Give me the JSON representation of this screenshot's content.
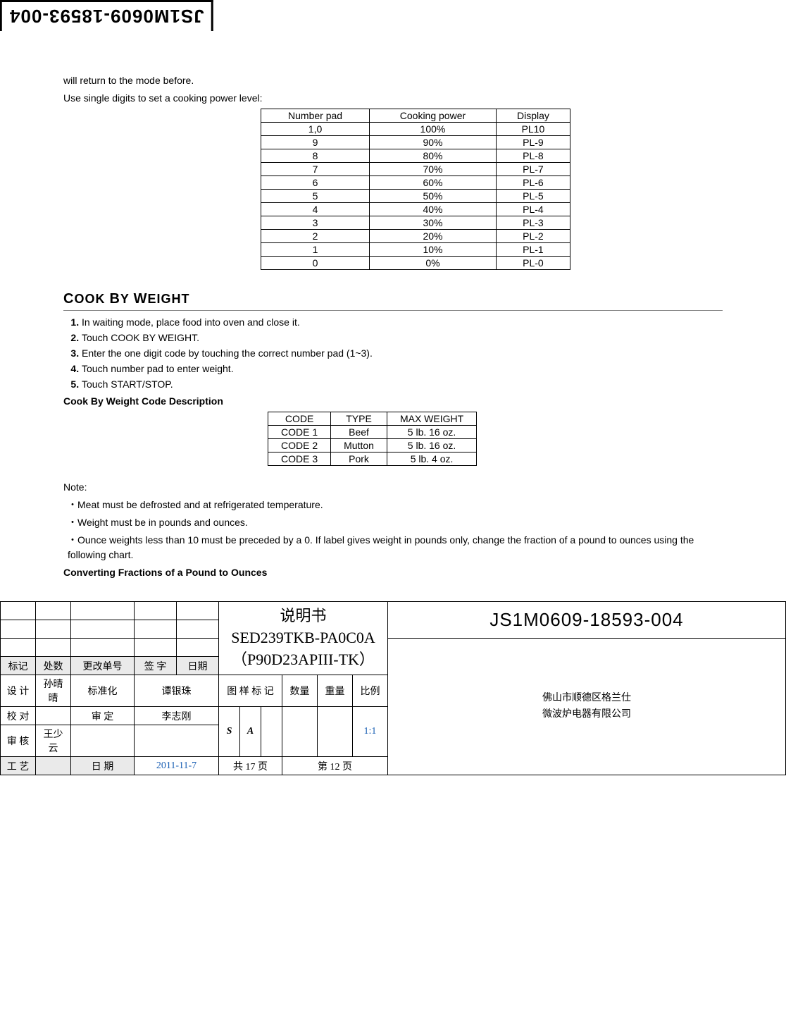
{
  "doc_id": "JS1M0609-18593-004",
  "intro_line1": "will return to the mode before.",
  "intro_line2": "Use single digits to set a cooking power level:",
  "power_table": {
    "headers": [
      "Number pad",
      "Cooking power",
      "Display"
    ],
    "rows": [
      [
        "1,0",
        "100%",
        "PL10"
      ],
      [
        "9",
        "90%",
        "PL-9"
      ],
      [
        "8",
        "80%",
        "PL-8"
      ],
      [
        "7",
        "70%",
        "PL-7"
      ],
      [
        "6",
        "60%",
        "PL-6"
      ],
      [
        "5",
        "50%",
        "PL-5"
      ],
      [
        "4",
        "40%",
        "PL-4"
      ],
      [
        "3",
        "30%",
        "PL-3"
      ],
      [
        "2",
        "20%",
        "PL-2"
      ],
      [
        "1",
        "10%",
        "PL-1"
      ],
      [
        "0",
        "0%",
        "PL-0"
      ]
    ]
  },
  "section_heading": "Cook By Weight",
  "steps": [
    "In waiting mode, place food into oven and close it.",
    "Touch COOK BY WEIGHT.",
    "Enter the one digit code by touching the correct number pad (1~3).",
    "Touch number pad to enter weight.",
    "Touch START/STOP."
  ],
  "code_desc_heading": "Cook By Weight Code Description",
  "code_table": {
    "headers": [
      "CODE",
      "TYPE",
      "MAX WEIGHT"
    ],
    "rows": [
      [
        "CODE 1",
        "Beef",
        "5 lb. 16 oz."
      ],
      [
        "CODE 2",
        "Mutton",
        "5 lb. 16 oz."
      ],
      [
        "CODE 3",
        "Pork",
        "5 lb. 4 oz."
      ]
    ]
  },
  "note_label": "Note:",
  "notes": [
    "Meat must be defrosted and at refrigerated temperature.",
    "Weight must be in pounds and ounces.",
    "Ounce weights less than 10 must be preceded by a 0. If label gives weight in pounds only, change the fraction of a pound to ounces using the following chart."
  ],
  "convert_heading": "Converting Fractions of a Pound to Ounces",
  "title_block": {
    "doc_title_line1": "说明书",
    "doc_title_line2": "SED239TKB-PA0C0A",
    "doc_title_line3": "（P90D23APIII-TK）",
    "doc_id": "JS1M0609-18593-004",
    "row_labels": {
      "biaoji": "标记",
      "chushu": "处数",
      "genggai": "更改单号",
      "qianzi": "签 字",
      "riqi": "日期",
      "sheji": "设 计",
      "biaozhunhua": "标准化",
      "tuyang": "图 样 标 记",
      "shuliang": "数量",
      "zhongliang": "重量",
      "bili": "比例",
      "jiaodui": "校 对",
      "shending": "审 定",
      "shenhe": "审 核",
      "gongyi": "工 艺",
      "riqi2": "日 期"
    },
    "names": {
      "sheji_name": "孙晴晴",
      "biaozhunhua_name": "谭银珠",
      "shending_name": "李志刚",
      "shenhe_name": "王少云"
    },
    "sa": {
      "s": "S",
      "a": "A"
    },
    "ratio": "1:1",
    "date_value": "2011-11-7",
    "pages_total": "共 17 页",
    "page_current": "第 12 页",
    "company_line1": "佛山市顺德区格兰仕",
    "company_line2": "微波炉电器有限公司"
  }
}
